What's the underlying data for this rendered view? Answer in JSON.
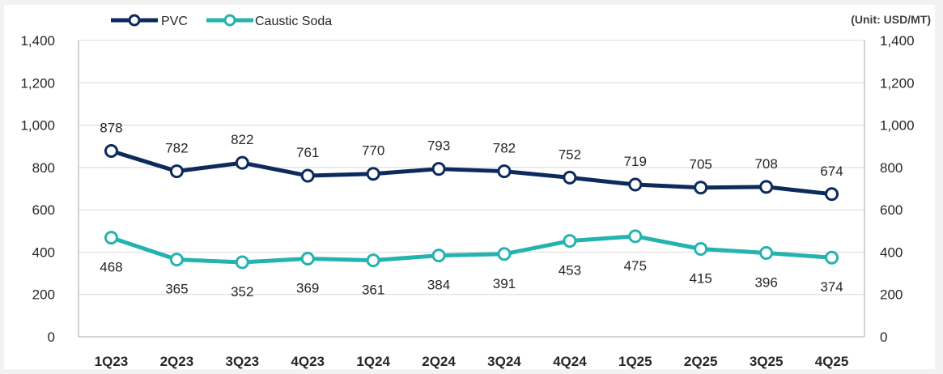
{
  "chart_data": {
    "type": "line",
    "unit_label": "(Unit: USD/MT)",
    "categories": [
      "1Q23",
      "2Q23",
      "3Q23",
      "4Q23",
      "1Q24",
      "2Q24",
      "3Q24",
      "4Q24",
      "1Q25",
      "2Q25",
      "3Q25",
      "4Q25"
    ],
    "series": [
      {
        "name": "PVC",
        "color": "#0d2a5c",
        "values": [
          878,
          782,
          822,
          761,
          770,
          793,
          782,
          752,
          719,
          705,
          708,
          674
        ],
        "labels": [
          "878",
          "782",
          "822",
          "761",
          "770",
          "793",
          "782",
          "752",
          "719",
          "705",
          "708",
          "674"
        ],
        "label_position": "above"
      },
      {
        "name": "Caustic Soda",
        "color": "#25b3b0",
        "values": [
          468,
          365,
          352,
          369,
          361,
          384,
          391,
          453,
          475,
          415,
          396,
          374
        ],
        "labels": [
          "468",
          "365",
          "352",
          "369",
          "361",
          "384",
          "391",
          "453",
          "475",
          "415",
          "396",
          "374"
        ],
        "label_position": "below"
      }
    ],
    "ylim": [
      0,
      1400
    ],
    "y_ticks": [
      0,
      200,
      400,
      600,
      800,
      1000,
      1200,
      1400
    ],
    "y_tick_labels": [
      "0",
      "200",
      "400",
      "600",
      "800",
      "1,000",
      "1,200",
      "1,400"
    ],
    "secondary_y_ticks": [
      0,
      200,
      400,
      600,
      800,
      1000,
      1200,
      1400
    ],
    "secondary_y_tick_labels": [
      "0",
      "200",
      "400",
      "600",
      "800",
      "1,000",
      "1,200",
      "1,400"
    ],
    "grid": true,
    "legend_position": "top-left"
  }
}
